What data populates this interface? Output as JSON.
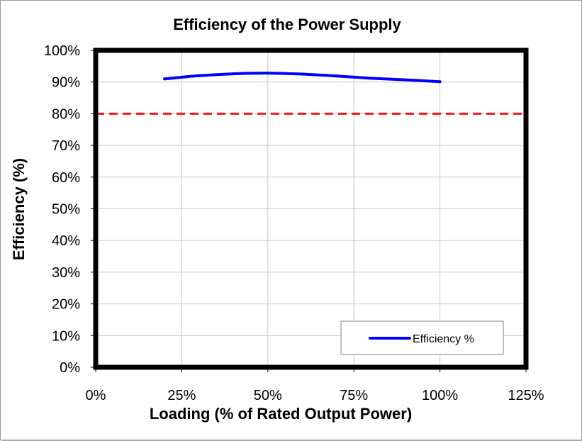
{
  "chart_data": {
    "type": "line",
    "title": "Efficiency of the Power Supply",
    "xlabel": "Loading (% of Rated Output Power)",
    "ylabel": "Efficiency (%)",
    "xlim": [
      0,
      125
    ],
    "ylim": [
      0,
      100
    ],
    "x_ticks": [
      0,
      25,
      50,
      75,
      100,
      125
    ],
    "y_ticks": [
      0,
      10,
      20,
      30,
      40,
      50,
      60,
      70,
      80,
      90,
      100
    ],
    "x_tick_labels": [
      "0%",
      "25%",
      "50%",
      "75%",
      "100%",
      "125%"
    ],
    "y_tick_labels": [
      "0%",
      "10%",
      "20%",
      "30%",
      "40%",
      "50%",
      "60%",
      "70%",
      "80%",
      "90%",
      "100%"
    ],
    "grid": true,
    "legend_position": "bottom-right",
    "series": [
      {
        "name": "Efficiency %",
        "color": "#0000ff",
        "x": [
          20,
          30,
          40,
          50,
          60,
          70,
          80,
          90,
          100
        ],
        "y": [
          91.0,
          92.0,
          92.6,
          92.8,
          92.5,
          91.9,
          91.2,
          90.7,
          90.1
        ]
      }
    ],
    "reference_lines": [
      {
        "value": 80,
        "color": "#ee1c1c",
        "style": "dashed"
      }
    ],
    "colors": {
      "plot_border": "#000000",
      "grid": "#c8c8c8",
      "reference": "#ee1c1c",
      "series": "#0000ff"
    }
  }
}
